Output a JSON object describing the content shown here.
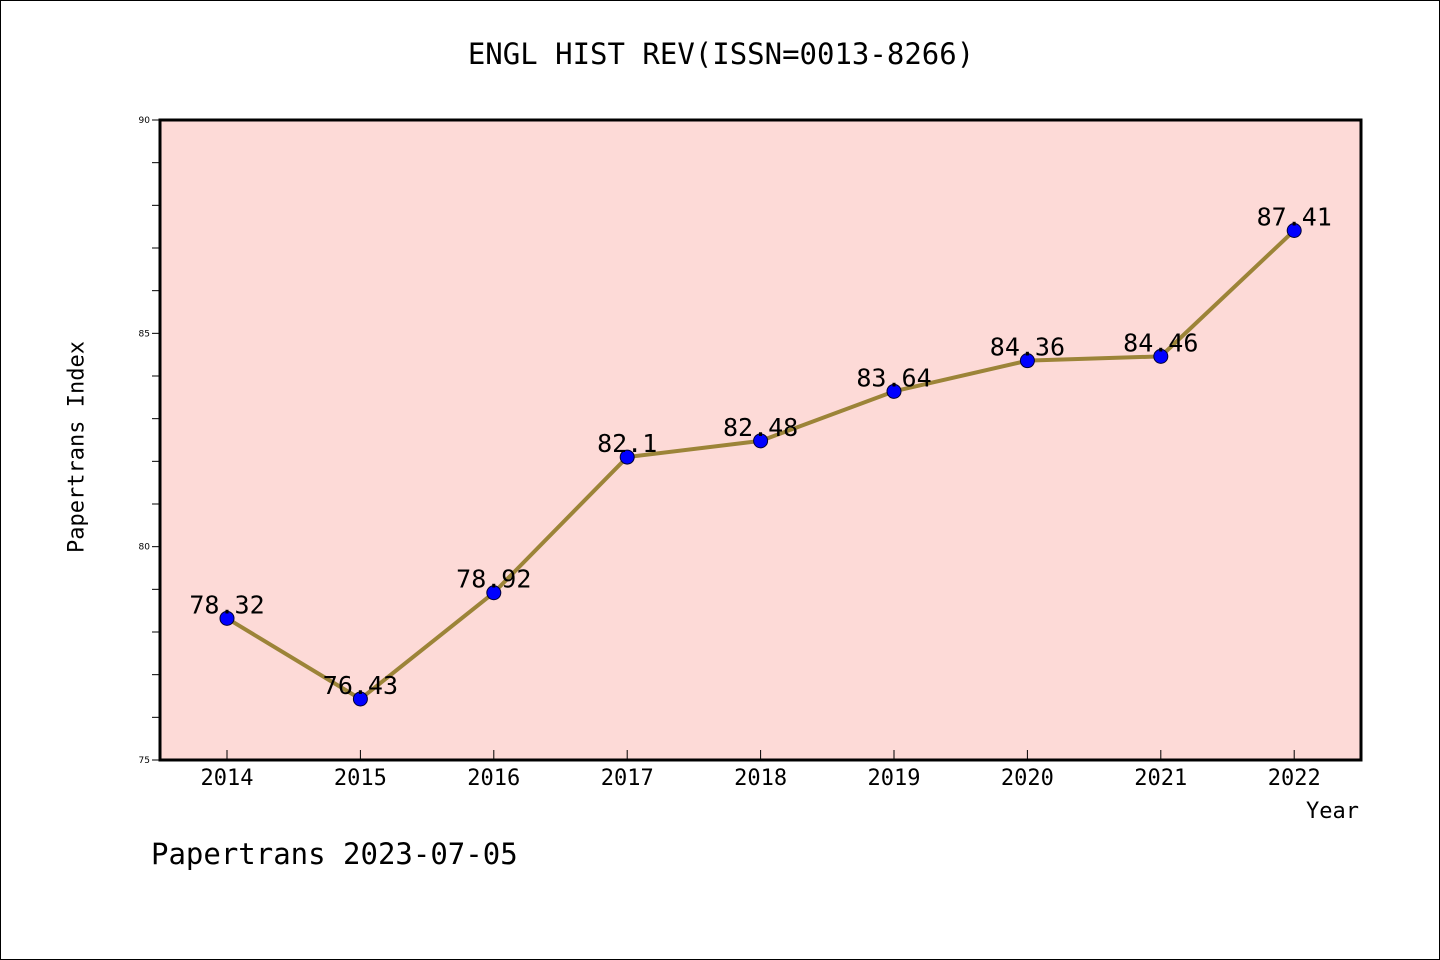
{
  "chart_data": {
    "type": "line",
    "title": "ENGL HIST REV(ISSN=0013-8266)",
    "xlabel": "Year",
    "ylabel": "Papertrans Index",
    "categories": [
      "2014",
      "2015",
      "2016",
      "2017",
      "2018",
      "2019",
      "2020",
      "2021",
      "2022"
    ],
    "series": [
      {
        "values": [
          78.32,
          76.43,
          78.92,
          82.1,
          82.48,
          83.64,
          84.36,
          84.46,
          87.41
        ]
      }
    ],
    "data_labels": [
      "78.32",
      "76.43",
      "78.92",
      "82.1",
      "82.48",
      "83.64",
      "84.36",
      "84.46",
      "87.41"
    ],
    "ylim": [
      75,
      90
    ],
    "yticks": [
      75,
      80,
      85,
      90
    ],
    "ytick_labels": [
      "75",
      "80",
      "85",
      "90"
    ],
    "grid": false,
    "colors": {
      "plot_background": "#fddad7",
      "line": "#9c8438",
      "marker": "#0000ff"
    }
  },
  "footer": "Papertrans 2023-07-05"
}
